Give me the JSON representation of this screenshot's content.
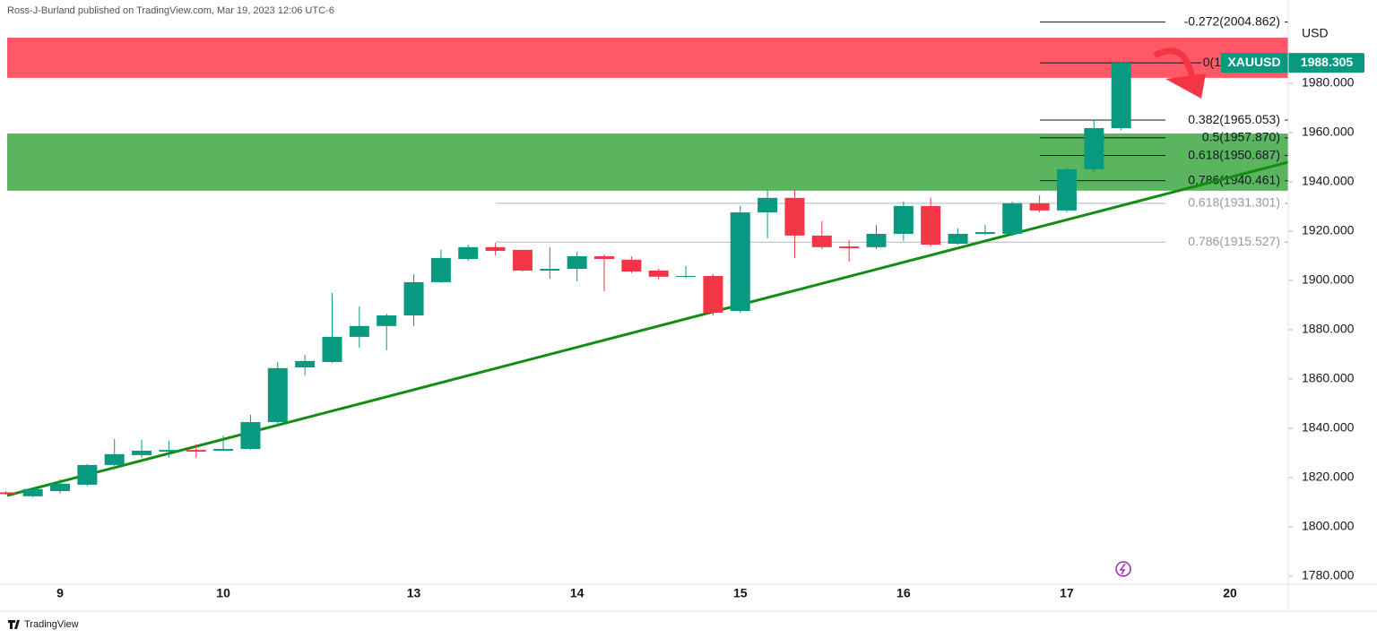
{
  "header": "Ross-J-Burland published on TradingView.com, Mar 19, 2023 12:06 UTC-6",
  "footer": "TradingView",
  "chart_data": {
    "type": "candlestick",
    "symbol": "XAUUSD",
    "currency": "USD",
    "last_price": 1988.305,
    "up_color": "#089981",
    "down_color": "#f23645",
    "categories": [
      null,
      null,
      "9",
      null,
      null,
      null,
      null,
      null,
      "10",
      null,
      null,
      null,
      null,
      null,
      null,
      "13",
      null,
      null,
      null,
      null,
      null,
      "14",
      null,
      null,
      null,
      null,
      null,
      "15",
      null,
      null,
      null,
      null,
      null,
      "16",
      null,
      null,
      null,
      null,
      null,
      "17",
      null,
      null,
      null,
      null,
      null,
      "20"
    ],
    "open": [
      1814,
      1812.4,
      1814.5,
      1817.1,
      1825.1,
      1829.1,
      1830.5,
      1831.2,
      1830.9,
      1831.6,
      1842.5,
      1864.7,
      1866.9,
      1877.1,
      1881.5,
      1885.8,
      1899.3,
      1908.7,
      1913.5,
      1912.4,
      1904,
      1904.7,
      1909.8,
      1908.4,
      1904,
      1901.5,
      1901.8,
      1887.6,
      1927.6,
      1933.5,
      1918.2,
      1913.8,
      1913.5,
      1918.9,
      1930.2,
      1914.9,
      1918.9,
      1918.9,
      1931.3,
      1928.4,
      1945.1,
      1961.8,
      null,
      null,
      null,
      null
    ],
    "high": [
      1814.5,
      1816,
      1819.3,
      1825.5,
      1835.6,
      1835.3,
      1835,
      1833.5,
      1837,
      1845.5,
      1866.9,
      1869.8,
      1894.9,
      1889.5,
      1886.5,
      1902.5,
      1912.4,
      1914.5,
      1915.3,
      1912.5,
      1913.5,
      1911.6,
      1910.5,
      1909.8,
      1904.7,
      1905.8,
      1902.5,
      1930.2,
      1936.7,
      1936.7,
      1924,
      1916.4,
      1922.5,
      1932,
      1933.5,
      1921.1,
      1922.5,
      1932,
      1934.5,
      1945.8,
      1965.1,
      1988.6,
      null,
      null,
      null,
      null
    ],
    "low": [
      1813,
      1812,
      1813.5,
      1816.5,
      1824.7,
      1828,
      1828,
      1828,
      1830.9,
      1831.3,
      1841,
      1861.5,
      1866.5,
      1872.7,
      1871.6,
      1881.5,
      1899,
      1908,
      1910.2,
      1903.6,
      1900.7,
      1899.6,
      1895.6,
      1902.9,
      1900.4,
      1901,
      1885.8,
      1886.9,
      1917.1,
      1909.1,
      1912.7,
      1907.6,
      1912.7,
      1916,
      1913.8,
      1914.5,
      1918.5,
      1918,
      1927.6,
      1927.6,
      1944,
      1961,
      null,
      null,
      null,
      null
    ],
    "close": [
      1813.3,
      1815.3,
      1817.5,
      1825.1,
      1829.5,
      1830.9,
      1831.2,
      1830.5,
      1831.6,
      1842.5,
      1864.4,
      1867.3,
      1877.1,
      1881.5,
      1885.8,
      1899.3,
      1909.1,
      1913.5,
      1912,
      1904,
      1904.7,
      1909.8,
      1908.7,
      1903.6,
      1901.5,
      1901.8,
      1886.9,
      1927.6,
      1933.5,
      1918.2,
      1913.5,
      1913.1,
      1918.9,
      1930.2,
      1914.5,
      1918.9,
      1919.6,
      1931.3,
      1928.4,
      1945.1,
      1961.8,
      1988.305,
      null,
      null,
      null,
      null
    ],
    "ylim": [
      1776.7,
      2013.8
    ],
    "yticks": [
      {
        "value": 1780,
        "label": "1780.000"
      },
      {
        "value": 1800,
        "label": "1800.000"
      },
      {
        "value": 1820,
        "label": "1820.000"
      },
      {
        "value": 1840,
        "label": "1840.000"
      },
      {
        "value": 1860,
        "label": "1860.000"
      },
      {
        "value": 1880,
        "label": "1880.000"
      },
      {
        "value": 1900,
        "label": "1900.000"
      },
      {
        "value": 1920,
        "label": "1920.000"
      },
      {
        "value": 1940,
        "label": "1940.000"
      },
      {
        "value": 1960,
        "label": "1960.000"
      },
      {
        "value": 1980,
        "label": "1980.000"
      }
    ],
    "zones": [
      {
        "from": 1998.5,
        "to": 1982.2,
        "color": "#ff4b5a"
      },
      {
        "from": 1959.6,
        "to": 1936.4,
        "color": "#4caf50"
      }
    ],
    "trendline": {
      "values": [
        1812.7,
        1948
      ],
      "color": "#148c14"
    },
    "fib_sets": [
      {
        "color": "#131722",
        "levels": [
          {
            "label": "-0.272(2004.862)",
            "value": 2004.862
          },
          {
            "label": "0(1",
            "value": 1988.3
          },
          {
            "label": "0.382(1965.053)",
            "value": 1965.053
          },
          {
            "label": "0.5(1957.870)",
            "value": 1957.87
          },
          {
            "label": "0.618(1950.687)",
            "value": 1950.687
          },
          {
            "label": "0.786(1940.461)",
            "value": 1940.461
          }
        ]
      },
      {
        "color": "#9598a1",
        "levels": [
          {
            "label": "0.618(1931.301)",
            "value": 1931.301
          },
          {
            "label": "0.786(1915.527)",
            "value": 1915.527
          }
        ]
      }
    ]
  }
}
